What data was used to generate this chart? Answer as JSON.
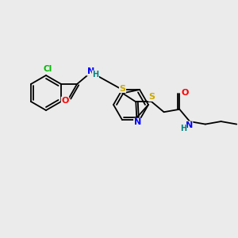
{
  "bg_color": "#ebebeb",
  "bond_color": "#000000",
  "atom_colors": {
    "Cl": "#00bb00",
    "N": "#0000ff",
    "H": "#008080",
    "S": "#ccaa00",
    "O": "#ff0000",
    "C": "#000000"
  },
  "figsize": [
    3.0,
    3.0
  ],
  "dpi": 100
}
